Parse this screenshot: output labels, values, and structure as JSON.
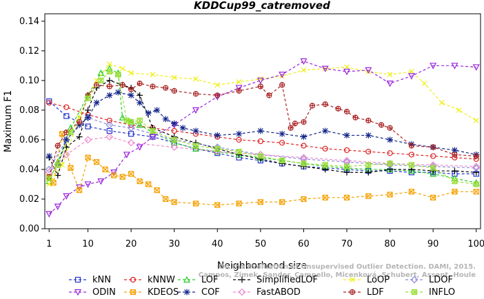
{
  "chart_data": {
    "type": "line",
    "title": "KDDCup99_catremoved",
    "xlabel": "Neighborhood size",
    "ylabel": "Maximum F1",
    "xlim": [
      0,
      101
    ],
    "ylim": [
      0,
      0.145
    ],
    "xticks": [
      1,
      10,
      20,
      30,
      40,
      50,
      60,
      70,
      80,
      90,
      100
    ],
    "yticks": [
      "0.00",
      "0.02",
      "0.04",
      "0.06",
      "0.08",
      "0.10",
      "0.12",
      "0.14"
    ],
    "grid": false,
    "legend_position": "bottom",
    "watermark": [
      "Campos, Zimek, Sander, Campello, Micenková, Schubert, Assent, Houle",
      "On the Evaluation of Unsupervised Outlier Detection. DAMI, 2015."
    ],
    "series": [
      {
        "name": "kNN",
        "color": "#2233cc",
        "marker": "square",
        "x": [
          1,
          5,
          10,
          15,
          20,
          25,
          30,
          35,
          40,
          45,
          50,
          55,
          60,
          65,
          70,
          75,
          80,
          85,
          90,
          95,
          100
        ],
        "y": [
          0.086,
          0.076,
          0.069,
          0.066,
          0.064,
          0.062,
          0.058,
          0.054,
          0.051,
          0.048,
          0.046,
          0.044,
          0.042,
          0.041,
          0.04,
          0.039,
          0.039,
          0.038,
          0.038,
          0.037,
          0.037
        ]
      },
      {
        "name": "kNNW",
        "color": "#dd2222",
        "marker": "circle",
        "x": [
          1,
          5,
          10,
          15,
          20,
          25,
          30,
          35,
          40,
          45,
          50,
          55,
          60,
          65,
          70,
          75,
          80,
          85,
          90,
          95,
          100
        ],
        "y": [
          0.085,
          0.082,
          0.077,
          0.073,
          0.07,
          0.068,
          0.066,
          0.064,
          0.062,
          0.06,
          0.059,
          0.058,
          0.056,
          0.054,
          0.053,
          0.052,
          0.051,
          0.05,
          0.049,
          0.048,
          0.047
        ]
      },
      {
        "name": "LOF",
        "color": "#22cc22",
        "marker": "triangle-up",
        "x": [
          1,
          3,
          6,
          10,
          13,
          15,
          17,
          18,
          20,
          22,
          25,
          30,
          35,
          40,
          45,
          50,
          55,
          60,
          65,
          70,
          75,
          80,
          85,
          90,
          95,
          100
        ],
        "y": [
          0.032,
          0.045,
          0.068,
          0.09,
          0.105,
          0.108,
          0.105,
          0.075,
          0.072,
          0.07,
          0.065,
          0.058,
          0.054,
          0.052,
          0.05,
          0.048,
          0.046,
          0.044,
          0.042,
          0.041,
          0.04,
          0.04,
          0.039,
          0.037,
          0.034,
          0.031
        ]
      },
      {
        "name": "SimplifiedLOF",
        "color": "#000000",
        "marker": "plus",
        "x": [
          1,
          3,
          5,
          8,
          10,
          12,
          15,
          18,
          20,
          22,
          25,
          30,
          35,
          40,
          45,
          50,
          55,
          60,
          65,
          70,
          75,
          80,
          85,
          90,
          95,
          100
        ],
        "y": [
          0.048,
          0.036,
          0.055,
          0.062,
          0.08,
          0.095,
          0.1,
          0.097,
          0.095,
          0.09,
          0.068,
          0.062,
          0.058,
          0.054,
          0.05,
          0.047,
          0.044,
          0.042,
          0.04,
          0.038,
          0.038,
          0.04,
          0.04,
          0.039,
          0.039,
          0.038
        ]
      },
      {
        "name": "LoOP",
        "color": "#eeee11",
        "marker": "x",
        "x": [
          1,
          4,
          8,
          12,
          15,
          18,
          20,
          25,
          30,
          35,
          40,
          45,
          50,
          55,
          60,
          65,
          70,
          75,
          80,
          85,
          88,
          92,
          96,
          100
        ],
        "y": [
          0.03,
          0.043,
          0.075,
          0.1,
          0.111,
          0.108,
          0.105,
          0.104,
          0.102,
          0.101,
          0.097,
          0.099,
          0.101,
          0.103,
          0.107,
          0.108,
          0.109,
          0.106,
          0.104,
          0.106,
          0.098,
          0.085,
          0.08,
          0.073
        ]
      },
      {
        "name": "LDOF",
        "color": "#8888dd",
        "marker": "diamond",
        "x": [
          1,
          5,
          10,
          15,
          20,
          30,
          40,
          50,
          60,
          70,
          80,
          90,
          100
        ],
        "y": [
          0.04,
          0.06,
          0.075,
          0.07,
          0.068,
          0.06,
          0.055,
          0.05,
          0.047,
          0.045,
          0.043,
          0.042,
          0.041
        ]
      },
      {
        "name": "ODIN",
        "color": "#9922dd",
        "marker": "triangle-down",
        "x": [
          1,
          3,
          5,
          8,
          10,
          13,
          16,
          19,
          22,
          25,
          30,
          35,
          40,
          45,
          50,
          55,
          60,
          65,
          70,
          75,
          80,
          85,
          90,
          95,
          100
        ],
        "y": [
          0.01,
          0.015,
          0.022,
          0.028,
          0.03,
          0.032,
          0.038,
          0.05,
          0.055,
          0.062,
          0.07,
          0.08,
          0.089,
          0.095,
          0.1,
          0.104,
          0.113,
          0.108,
          0.106,
          0.107,
          0.098,
          0.103,
          0.11,
          0.11,
          0.109
        ]
      },
      {
        "name": "KDEOS",
        "color": "#f5a000",
        "marker": "square-x",
        "x": [
          1,
          2,
          4,
          6,
          8,
          10,
          12,
          14,
          16,
          18,
          20,
          22,
          24,
          26,
          28,
          30,
          35,
          40,
          45,
          50,
          55,
          60,
          65,
          70,
          75,
          80,
          85,
          90,
          95,
          100
        ],
        "y": [
          0.035,
          0.031,
          0.064,
          0.041,
          0.026,
          0.048,
          0.045,
          0.04,
          0.036,
          0.035,
          0.037,
          0.032,
          0.03,
          0.026,
          0.02,
          0.018,
          0.017,
          0.016,
          0.017,
          0.018,
          0.018,
          0.02,
          0.021,
          0.021,
          0.022,
          0.023,
          0.025,
          0.021,
          0.025,
          0.025
        ]
      },
      {
        "name": "COF",
        "color": "#112288",
        "marker": "star",
        "x": [
          1,
          3,
          5,
          8,
          10,
          12,
          15,
          17,
          20,
          22,
          24,
          26,
          28,
          30,
          32,
          35,
          40,
          45,
          50,
          55,
          60,
          65,
          70,
          75,
          80,
          85,
          90,
          95,
          100
        ],
        "y": [
          0.049,
          0.043,
          0.06,
          0.07,
          0.075,
          0.085,
          0.09,
          0.092,
          0.09,
          0.085,
          0.078,
          0.08,
          0.074,
          0.071,
          0.068,
          0.066,
          0.063,
          0.064,
          0.066,
          0.064,
          0.062,
          0.066,
          0.063,
          0.063,
          0.06,
          0.057,
          0.055,
          0.053,
          0.05
        ]
      },
      {
        "name": "FastABOD",
        "color": "#ee88cc",
        "marker": "diamond",
        "x": [
          1,
          5,
          10,
          15,
          20,
          30,
          40,
          50,
          60,
          70,
          80,
          90,
          100
        ],
        "y": [
          0.038,
          0.05,
          0.06,
          0.062,
          0.058,
          0.055,
          0.052,
          0.05,
          0.048,
          0.046,
          0.044,
          0.043,
          0.042
        ]
      },
      {
        "name": "LDF",
        "color": "#aa2222",
        "marker": "circle-plus",
        "x": [
          1,
          3,
          5,
          8,
          10,
          12,
          15,
          18,
          20,
          22,
          25,
          28,
          30,
          35,
          40,
          45,
          50,
          52,
          55,
          57,
          58,
          60,
          62,
          65,
          68,
          70,
          72,
          75,
          78,
          80,
          85,
          90,
          95,
          100
        ],
        "y": [
          0.035,
          0.056,
          0.065,
          0.072,
          0.09,
          0.097,
          0.096,
          0.097,
          0.094,
          0.098,
          0.096,
          0.095,
          0.093,
          0.091,
          0.09,
          0.093,
          0.096,
          0.09,
          0.097,
          0.068,
          0.071,
          0.072,
          0.083,
          0.084,
          0.081,
          0.079,
          0.075,
          0.073,
          0.07,
          0.068,
          0.056,
          0.055,
          0.05,
          0.049
        ]
      },
      {
        "name": "INFLO",
        "color": "#99dd33",
        "marker": "square-star",
        "x": [
          1,
          3,
          6,
          10,
          13,
          15,
          17,
          19,
          20,
          22,
          25,
          30,
          35,
          40,
          45,
          50,
          55,
          60,
          65,
          70,
          75,
          80,
          85,
          90,
          95,
          100
        ],
        "y": [
          0.034,
          0.043,
          0.065,
          0.088,
          0.1,
          0.106,
          0.104,
          0.073,
          0.072,
          0.073,
          0.066,
          0.06,
          0.056,
          0.054,
          0.052,
          0.049,
          0.046,
          0.044,
          0.043,
          0.042,
          0.043,
          0.044,
          0.043,
          0.041,
          0.032,
          0.03
        ]
      }
    ]
  }
}
